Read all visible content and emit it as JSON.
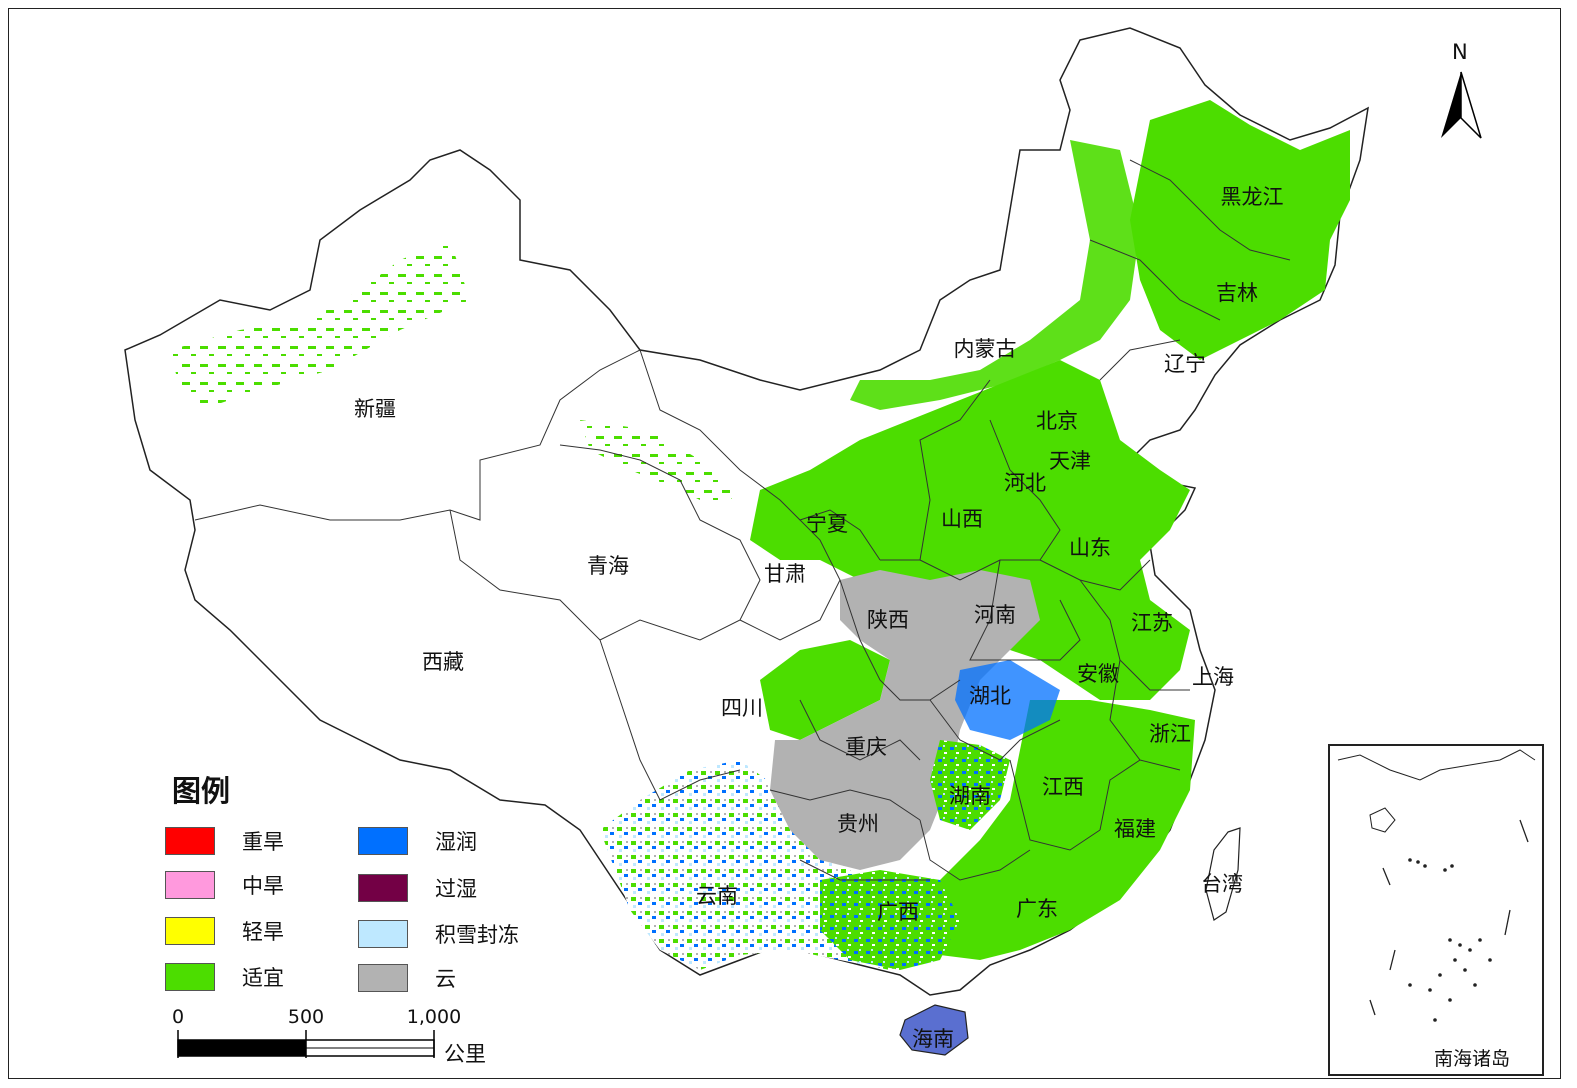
{
  "legend": {
    "title": "图例",
    "items": [
      {
        "label": "重旱",
        "color": "#ff0000"
      },
      {
        "label": "中旱",
        "color": "#ff99dd"
      },
      {
        "label": "轻旱",
        "color": "#ffff00"
      },
      {
        "label": "适宜",
        "color": "#4cdd00"
      },
      {
        "label": "湿润",
        "color": "#0070ff"
      },
      {
        "label": "过湿",
        "color": "#730045"
      },
      {
        "label": "积雪封冻",
        "color": "#bee8ff"
      },
      {
        "label": "云",
        "color": "#b2b2b2"
      }
    ]
  },
  "scale_bar": {
    "ticks": [
      "0",
      "500",
      "1,000"
    ],
    "unit": "公里"
  },
  "north_arrow": {
    "label": "N"
  },
  "inset": {
    "label": "南海诸岛"
  },
  "provinces": {
    "heilongjiang": "黑龙江",
    "jilin": "吉林",
    "liaoning": "辽宁",
    "neimenggu": "内蒙古",
    "beijing": "北京",
    "tianjin": "天津",
    "hebei": "河北",
    "shanxi": "山西",
    "shandong": "山东",
    "ningxia": "宁夏",
    "gansu": "甘肃",
    "qinghai": "青海",
    "xinjiang": "新疆",
    "xizang": "西藏",
    "shaanxi": "陕西",
    "henan": "河南",
    "jiangsu": "江苏",
    "anhui": "安徽",
    "shanghai": "上海",
    "hubei": "湖北",
    "sichuan": "四川",
    "chongqing": "重庆",
    "zhejiang": "浙江",
    "jiangxi": "江西",
    "hunan": "湖南",
    "guizhou": "贵州",
    "fujian": "福建",
    "taiwan": "台湾",
    "yunnan": "云南",
    "guangxi": "广西",
    "guangdong": "广东",
    "hainan": "海南"
  }
}
